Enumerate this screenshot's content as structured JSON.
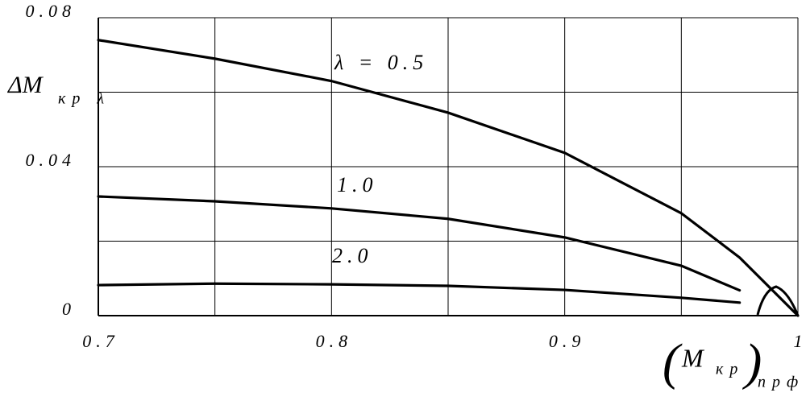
{
  "chart_data": {
    "type": "line",
    "y_label": {
      "main": "ΔM",
      "sub": "кр λ"
    },
    "x_label": {
      "open": "(",
      "main": "M",
      "sub": "кр",
      "close": ")",
      "outer_sub": "прф"
    },
    "x": [
      0.7,
      0.75,
      0.8,
      0.85,
      0.9,
      0.95,
      0.975,
      1.0
    ],
    "series": [
      {
        "name": "λ = 0.5",
        "color": "#000000",
        "values": [
          0.074,
          0.069,
          0.063,
          0.0545,
          0.0437,
          0.0275,
          0.0156,
          0
        ]
      },
      {
        "name": "1.0",
        "color": "#000000",
        "values": [
          0.032,
          0.0307,
          0.0288,
          0.026,
          0.021,
          0.0134,
          0.0068,
          null
        ]
      },
      {
        "name": "2.0",
        "color": "#000000",
        "values": [
          0.0082,
          0.0086,
          0.0084,
          0.008,
          0.0069,
          0.0048,
          0.0035,
          null
        ]
      }
    ],
    "xlim": [
      0.7,
      1
    ],
    "ylim": [
      0,
      0.08
    ],
    "xticks": [
      0.7,
      0.8,
      0.9,
      1
    ],
    "yticks": [
      0,
      0.04,
      0.08
    ],
    "minor_xticks": [
      0.75,
      0.85,
      0.95
    ],
    "minor_yticks": [
      0.02,
      0.06
    ],
    "grid": true
  }
}
